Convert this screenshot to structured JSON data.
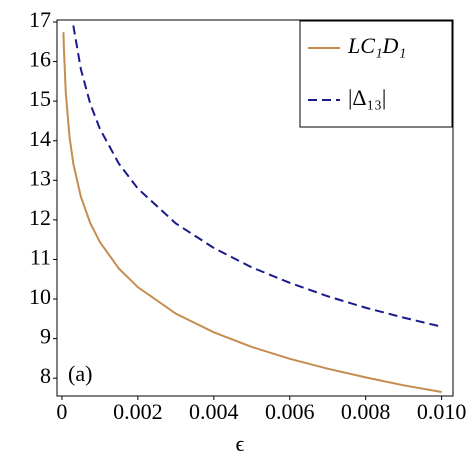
{
  "chart_data": {
    "type": "line",
    "x_label": "ϵ",
    "annotation": "(a)",
    "x": [
      4e-05,
      5e-05,
      0.0001,
      0.0002,
      0.0003,
      0.0005,
      0.00075,
      0.001,
      0.0015,
      0.002,
      0.003,
      0.004,
      0.005,
      0.006,
      0.007,
      0.008,
      0.009,
      0.01
    ],
    "series": [
      {
        "name": "LC₁D₁",
        "color": "#c58c4f",
        "dash": false,
        "values": [
          16.74,
          16.37,
          15.23,
          14.09,
          13.42,
          12.58,
          11.91,
          11.44,
          10.77,
          10.3,
          9.63,
          9.16,
          8.79,
          8.49,
          8.24,
          8.02,
          7.82,
          7.65
        ]
      },
      {
        "name": "|Δ₁₃|",
        "color": "#1a1a8c",
        "dash": true,
        "values": [
          null,
          null,
          null,
          null,
          16.91,
          15.8,
          14.92,
          14.3,
          13.42,
          12.79,
          11.91,
          11.29,
          10.8,
          10.41,
          10.07,
          9.78,
          9.53,
          9.3
        ]
      }
    ],
    "xlim": [
      -0.00013,
      0.0103
    ],
    "ylim": [
      7.55,
      17.05
    ],
    "xticks": [
      0,
      0.002,
      0.004,
      0.006,
      0.008,
      {
        "value": 0.01,
        "label": "0.010"
      }
    ],
    "yticks": [
      8,
      9,
      10,
      11,
      12,
      13,
      14,
      15,
      16,
      17
    ],
    "legend": "upper right"
  }
}
